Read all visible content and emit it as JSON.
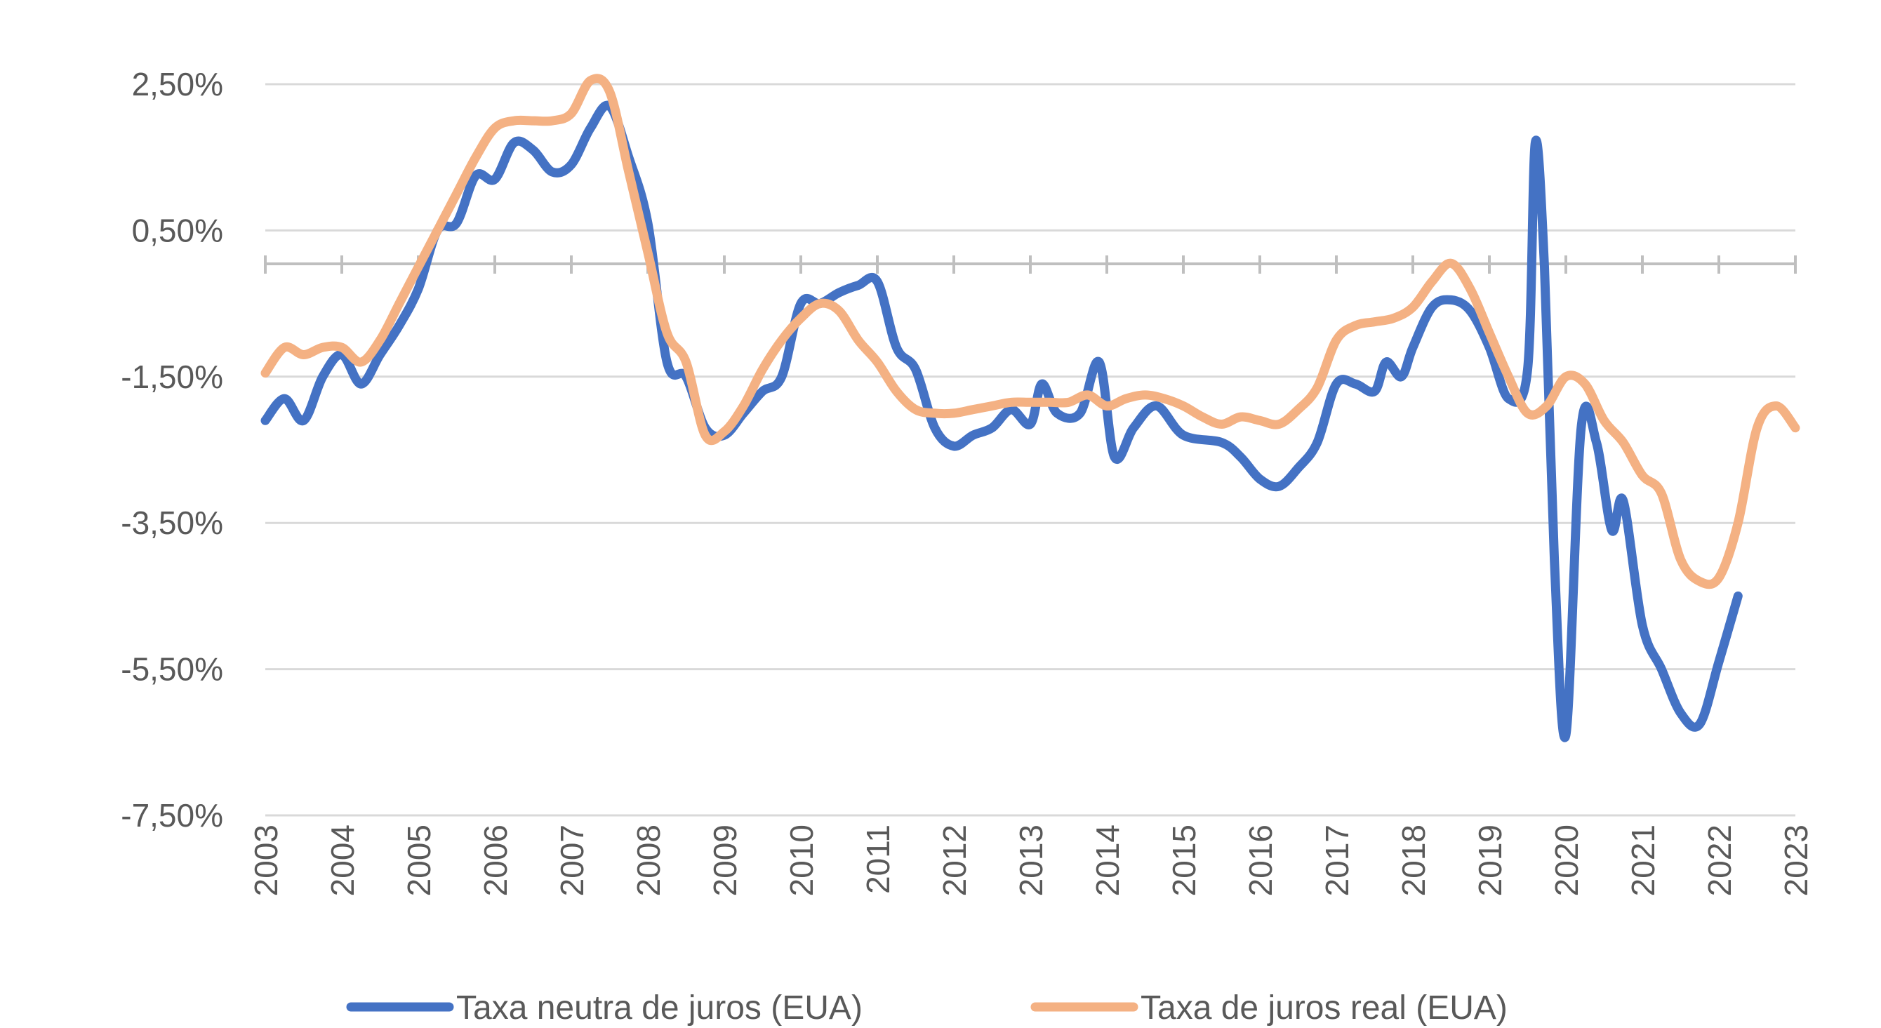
{
  "chart_data": {
    "type": "line",
    "title": "",
    "xlabel": "",
    "ylabel": "",
    "xlim": [
      2003,
      2023
    ],
    "ylim": [
      -7.5,
      3.0
    ],
    "y_ticks": [
      2.5,
      0.5,
      -1.5,
      -3.5,
      -5.5,
      -7.5
    ],
    "y_tick_labels": [
      "2,50%",
      "0,50%",
      "-1,50%",
      "-3,50%",
      "-5,50%",
      "-7,50%"
    ],
    "x_ticks": [
      2003,
      2004,
      2005,
      2006,
      2007,
      2008,
      2009,
      2010,
      2011,
      2012,
      2013,
      2014,
      2015,
      2016,
      2017,
      2018,
      2019,
      2020,
      2021,
      2022,
      2023
    ],
    "x_tick_labels": [
      "2003",
      "2004",
      "2005",
      "2006",
      "2007",
      "2008",
      "2009",
      "2010",
      "2011",
      "2012",
      "2013",
      "2014",
      "2015",
      "2016",
      "2017",
      "2018",
      "2019",
      "2020",
      "2021",
      "2022",
      "2023"
    ],
    "grid": true,
    "legend_position": "bottom",
    "series": [
      {
        "name": "Taxa neutra de juros (EUA)",
        "color": "#4472C4",
        "points": [
          [
            2003.0,
            -2.1
          ],
          [
            2003.25,
            -1.8
          ],
          [
            2003.5,
            -2.1
          ],
          [
            2003.75,
            -1.5
          ],
          [
            2004.0,
            -1.2
          ],
          [
            2004.25,
            -1.6
          ],
          [
            2004.5,
            -1.2
          ],
          [
            2004.75,
            -0.8
          ],
          [
            2005.0,
            -0.3
          ],
          [
            2005.25,
            0.5
          ],
          [
            2005.5,
            0.6
          ],
          [
            2005.75,
            1.25
          ],
          [
            2006.0,
            1.2
          ],
          [
            2006.25,
            1.7
          ],
          [
            2006.5,
            1.6
          ],
          [
            2006.75,
            1.3
          ],
          [
            2007.0,
            1.4
          ],
          [
            2007.25,
            1.9
          ],
          [
            2007.5,
            2.2
          ],
          [
            2007.75,
            1.5
          ],
          [
            2008.0,
            0.6
          ],
          [
            2008.25,
            -1.3
          ],
          [
            2008.5,
            -1.5
          ],
          [
            2008.75,
            -2.2
          ],
          [
            2009.0,
            -2.3
          ],
          [
            2009.25,
            -2.0
          ],
          [
            2009.5,
            -1.7
          ],
          [
            2009.75,
            -1.5
          ],
          [
            2010.0,
            -0.5
          ],
          [
            2010.25,
            -0.5
          ],
          [
            2010.5,
            -0.35
          ],
          [
            2010.75,
            -0.25
          ],
          [
            2011.0,
            -0.2
          ],
          [
            2011.25,
            -1.1
          ],
          [
            2011.5,
            -1.4
          ],
          [
            2011.75,
            -2.2
          ],
          [
            2012.0,
            -2.45
          ],
          [
            2012.25,
            -2.3
          ],
          [
            2012.5,
            -2.2
          ],
          [
            2012.75,
            -1.95
          ],
          [
            2013.0,
            -2.15
          ],
          [
            2013.15,
            -1.6
          ],
          [
            2013.35,
            -2.0
          ],
          [
            2013.65,
            -2.0
          ],
          [
            2013.9,
            -1.3
          ],
          [
            2014.1,
            -2.6
          ],
          [
            2014.35,
            -2.2
          ],
          [
            2014.65,
            -1.9
          ],
          [
            2015.0,
            -2.3
          ],
          [
            2015.5,
            -2.4
          ],
          [
            2015.75,
            -2.6
          ],
          [
            2016.0,
            -2.9
          ],
          [
            2016.25,
            -3.0
          ],
          [
            2016.5,
            -2.75
          ],
          [
            2016.75,
            -2.4
          ],
          [
            2017.0,
            -1.6
          ],
          [
            2017.25,
            -1.6
          ],
          [
            2017.5,
            -1.7
          ],
          [
            2017.65,
            -1.3
          ],
          [
            2017.85,
            -1.5
          ],
          [
            2018.0,
            -1.1
          ],
          [
            2018.25,
            -0.55
          ],
          [
            2018.5,
            -0.45
          ],
          [
            2018.75,
            -0.6
          ],
          [
            2019.0,
            -1.1
          ],
          [
            2019.25,
            -1.8
          ],
          [
            2019.5,
            -1.4
          ],
          [
            2019.6,
            1.7
          ],
          [
            2019.72,
            0.0
          ],
          [
            2019.85,
            -4.0
          ],
          [
            2020.0,
            -6.4
          ],
          [
            2020.2,
            -2.2
          ],
          [
            2020.4,
            -2.4
          ],
          [
            2020.6,
            -3.6
          ],
          [
            2020.75,
            -3.2
          ],
          [
            2021.0,
            -4.9
          ],
          [
            2021.25,
            -5.5
          ],
          [
            2021.5,
            -6.1
          ],
          [
            2021.75,
            -6.25
          ],
          [
            2022.0,
            -5.4
          ],
          [
            2022.25,
            -4.5
          ]
        ]
      },
      {
        "name": "Taxa de juros real (EUA)",
        "color": "#F4B183",
        "points": [
          [
            2003.0,
            -1.45
          ],
          [
            2003.25,
            -1.1
          ],
          [
            2003.5,
            -1.2
          ],
          [
            2003.75,
            -1.1
          ],
          [
            2004.0,
            -1.1
          ],
          [
            2004.25,
            -1.3
          ],
          [
            2004.5,
            -1.0
          ],
          [
            2004.75,
            -0.5
          ],
          [
            2005.0,
            0.0
          ],
          [
            2005.25,
            0.5
          ],
          [
            2005.5,
            1.0
          ],
          [
            2005.75,
            1.5
          ],
          [
            2006.0,
            1.9
          ],
          [
            2006.25,
            2.0
          ],
          [
            2006.5,
            2.0
          ],
          [
            2006.75,
            2.0
          ],
          [
            2007.0,
            2.1
          ],
          [
            2007.25,
            2.55
          ],
          [
            2007.5,
            2.4
          ],
          [
            2007.75,
            1.3
          ],
          [
            2008.0,
            0.2
          ],
          [
            2008.25,
            -0.9
          ],
          [
            2008.5,
            -1.3
          ],
          [
            2008.75,
            -2.3
          ],
          [
            2009.0,
            -2.25
          ],
          [
            2009.25,
            -1.9
          ],
          [
            2009.5,
            -1.4
          ],
          [
            2009.75,
            -1.0
          ],
          [
            2010.0,
            -0.7
          ],
          [
            2010.25,
            -0.5
          ],
          [
            2010.5,
            -0.6
          ],
          [
            2010.75,
            -1.0
          ],
          [
            2011.0,
            -1.3
          ],
          [
            2011.25,
            -1.7
          ],
          [
            2011.5,
            -1.95
          ],
          [
            2011.75,
            -2.0
          ],
          [
            2012.0,
            -2.0
          ],
          [
            2012.25,
            -1.95
          ],
          [
            2012.5,
            -1.9
          ],
          [
            2012.75,
            -1.85
          ],
          [
            2013.0,
            -1.85
          ],
          [
            2013.25,
            -1.85
          ],
          [
            2013.5,
            -1.85
          ],
          [
            2013.75,
            -1.75
          ],
          [
            2014.0,
            -1.9
          ],
          [
            2014.25,
            -1.8
          ],
          [
            2014.5,
            -1.75
          ],
          [
            2014.75,
            -1.8
          ],
          [
            2015.0,
            -1.9
          ],
          [
            2015.25,
            -2.05
          ],
          [
            2015.5,
            -2.15
          ],
          [
            2015.75,
            -2.05
          ],
          [
            2016.0,
            -2.1
          ],
          [
            2016.25,
            -2.15
          ],
          [
            2016.5,
            -1.95
          ],
          [
            2016.75,
            -1.65
          ],
          [
            2017.0,
            -1.0
          ],
          [
            2017.25,
            -0.8
          ],
          [
            2017.5,
            -0.75
          ],
          [
            2017.75,
            -0.7
          ],
          [
            2018.0,
            -0.55
          ],
          [
            2018.25,
            -0.2
          ],
          [
            2018.5,
            0.05
          ],
          [
            2018.75,
            -0.3
          ],
          [
            2019.0,
            -0.9
          ],
          [
            2019.25,
            -1.5
          ],
          [
            2019.5,
            -2.0
          ],
          [
            2019.75,
            -1.9
          ],
          [
            2020.0,
            -1.5
          ],
          [
            2020.25,
            -1.6
          ],
          [
            2020.5,
            -2.1
          ],
          [
            2020.75,
            -2.4
          ],
          [
            2021.0,
            -2.85
          ],
          [
            2021.25,
            -3.1
          ],
          [
            2021.5,
            -4.0
          ],
          [
            2021.75,
            -4.3
          ],
          [
            2022.0,
            -4.25
          ],
          [
            2022.25,
            -3.5
          ],
          [
            2022.5,
            -2.2
          ],
          [
            2022.75,
            -1.9
          ],
          [
            2023.0,
            -2.2
          ]
        ]
      }
    ]
  }
}
